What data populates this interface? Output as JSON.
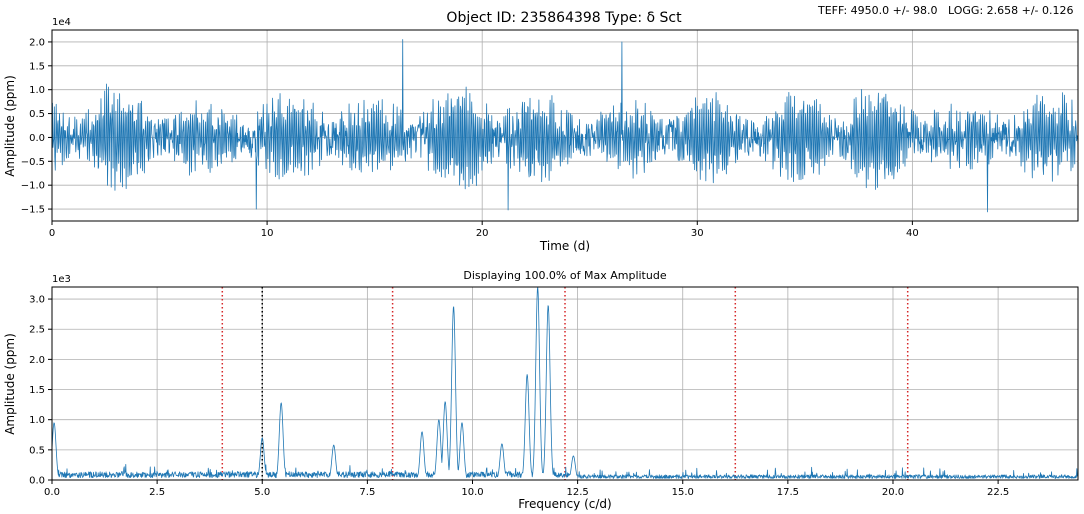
{
  "header": {
    "title": "Object ID: 235864398   Type: δ Sct",
    "teff": "TEFF: 4950.0 +/- 98.0",
    "logg": "LOGG: 2.658 +/- 0.126"
  },
  "chart_data": [
    {
      "type": "line",
      "name": "light-curve",
      "xlabel": "Time (d)",
      "ylabel": "Amplitude (ppm)",
      "offset_text": "1e4",
      "xlim": [
        0,
        47.7
      ],
      "ylim": [
        -17500,
        22500
      ],
      "xticks": [
        0,
        10,
        20,
        30,
        40
      ],
      "xtick_labels": [
        "0",
        "10",
        "20",
        "30",
        "40"
      ],
      "yticks": [
        -15000,
        -10000,
        -5000,
        0,
        5000,
        10000,
        15000,
        20000
      ],
      "ytick_labels": [
        "−1.5",
        "−1.0",
        "−0.5",
        "0.0",
        "0.5",
        "1.0",
        "1.5",
        "2.0"
      ],
      "grid": true,
      "description": "Noisy oscillating light curve, roughly ±1.0e4 ppm with peaks near 2.0e4",
      "peaks": [
        {
          "x": 16.3,
          "y": 20500
        },
        {
          "x": 26.5,
          "y": 20000
        },
        {
          "x": 9.5,
          "y": -15000
        },
        {
          "x": 21.2,
          "y": -15200
        },
        {
          "x": 43.5,
          "y": -15600
        }
      ]
    },
    {
      "type": "line",
      "name": "periodogram",
      "title": "Displaying 100.0% of Max Amplitude",
      "xlabel": "Frequency (c/d)",
      "ylabel": "Amplitude (ppm)",
      "offset_text": "1e3",
      "xlim": [
        0,
        24.4
      ],
      "ylim": [
        0,
        3200
      ],
      "xticks": [
        0,
        2.5,
        5,
        7.5,
        10,
        12.5,
        15,
        17.5,
        20,
        22.5
      ],
      "xtick_labels": [
        "0.0",
        "2.5",
        "5.0",
        "7.5",
        "10.0",
        "12.5",
        "15.0",
        "17.5",
        "20.0",
        "22.5"
      ],
      "yticks": [
        0,
        500,
        1000,
        1500,
        2000,
        2500,
        3000
      ],
      "ytick_labels": [
        "0.0",
        "0.5",
        "1.0",
        "1.5",
        "2.0",
        "2.5",
        "3.0"
      ],
      "grid": true,
      "vlines_red": [
        4.05,
        8.1,
        12.2,
        16.25,
        20.35
      ],
      "vlines_black": [
        5.0
      ],
      "peaks": [
        {
          "x": 0.05,
          "y": 950
        },
        {
          "x": 5.0,
          "y": 700
        },
        {
          "x": 5.45,
          "y": 1280
        },
        {
          "x": 6.7,
          "y": 580
        },
        {
          "x": 8.8,
          "y": 800
        },
        {
          "x": 9.2,
          "y": 1000
        },
        {
          "x": 9.35,
          "y": 1300
        },
        {
          "x": 9.55,
          "y": 2880
        },
        {
          "x": 9.75,
          "y": 950
        },
        {
          "x": 10.7,
          "y": 600
        },
        {
          "x": 11.3,
          "y": 1750
        },
        {
          "x": 11.55,
          "y": 3200
        },
        {
          "x": 11.8,
          "y": 2900
        },
        {
          "x": 12.4,
          "y": 400
        }
      ]
    }
  ]
}
